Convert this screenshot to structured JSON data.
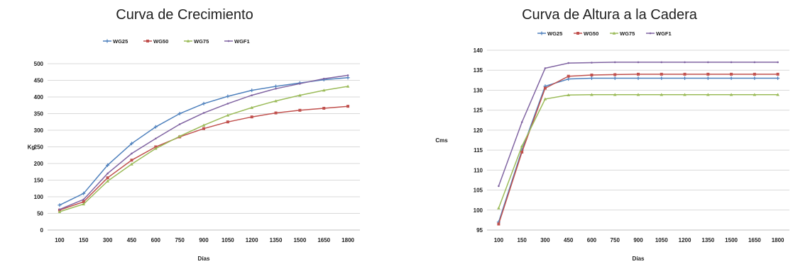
{
  "chart_data": [
    {
      "type": "line",
      "title": "Curva de Crecimiento",
      "xlabel": "Días",
      "ylabel": "Kg",
      "categories": [
        "100",
        "150",
        "300",
        "450",
        "600",
        "750",
        "900",
        "1050",
        "1200",
        "1350",
        "1500",
        "1650",
        "1800"
      ],
      "ylim": [
        0,
        500
      ],
      "yticks": [
        0,
        50,
        100,
        150,
        200,
        250,
        300,
        350,
        400,
        450,
        500
      ],
      "grid": true,
      "legend_position": "top",
      "series": [
        {
          "name": "WG25",
          "color": "#4f81bd",
          "values": [
            75,
            110,
            195,
            260,
            310,
            350,
            380,
            402,
            420,
            432,
            442,
            452,
            458
          ]
        },
        {
          "name": "WG50",
          "color": "#c0504d",
          "values": [
            60,
            85,
            157,
            210,
            250,
            280,
            305,
            325,
            340,
            352,
            360,
            366,
            372
          ]
        },
        {
          "name": "WG75",
          "color": "#9bbb59",
          "values": [
            55,
            78,
            147,
            198,
            245,
            282,
            315,
            345,
            368,
            388,
            405,
            420,
            432
          ]
        },
        {
          "name": "WGF1",
          "color": "#8064a2",
          "values": [
            62,
            92,
            170,
            230,
            275,
            318,
            352,
            380,
            405,
            425,
            440,
            455,
            465
          ]
        }
      ]
    },
    {
      "type": "line",
      "title": "Curva de Altura a la Cadera",
      "xlabel": "Días",
      "ylabel": "Cms",
      "categories": [
        "100",
        "150",
        "300",
        "450",
        "600",
        "750",
        "900",
        "1050",
        "1200",
        "1350",
        "1500",
        "1650",
        "1800"
      ],
      "ylim": [
        95,
        140
      ],
      "yticks": [
        95,
        100,
        105,
        110,
        115,
        120,
        125,
        130,
        135,
        140
      ],
      "grid": true,
      "legend_position": "top",
      "series": [
        {
          "name": "WG25",
          "color": "#4f81bd",
          "values": [
            97,
            115,
            131,
            132.8,
            133,
            133,
            133,
            133,
            133,
            133,
            133,
            133,
            133
          ]
        },
        {
          "name": "WG50",
          "color": "#c0504d",
          "values": [
            96.5,
            114.5,
            130.5,
            133.5,
            133.8,
            133.9,
            134,
            134,
            134,
            134,
            134,
            134,
            134
          ]
        },
        {
          "name": "WG75",
          "color": "#9bbb59",
          "values": [
            100.5,
            116,
            127.8,
            128.8,
            128.9,
            128.9,
            128.9,
            128.9,
            128.9,
            128.9,
            128.9,
            128.9,
            128.9
          ]
        },
        {
          "name": "WGF1",
          "color": "#8064a2",
          "values": [
            106,
            122,
            135.5,
            136.8,
            136.9,
            137,
            137,
            137,
            137,
            137,
            137,
            137,
            137
          ]
        }
      ]
    }
  ]
}
